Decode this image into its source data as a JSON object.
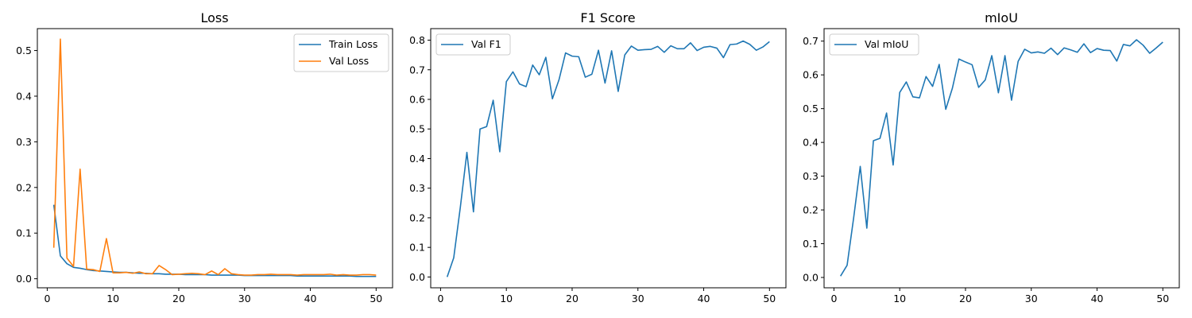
{
  "colors": {
    "blue": "#1f77b4",
    "orange": "#ff7f0e"
  },
  "chart_data": [
    {
      "type": "line",
      "title": "Loss",
      "xlabel": "",
      "ylabel": "",
      "x": [
        1,
        2,
        3,
        4,
        5,
        6,
        7,
        8,
        9,
        10,
        11,
        12,
        13,
        14,
        15,
        16,
        17,
        18,
        19,
        20,
        21,
        22,
        23,
        24,
        25,
        26,
        27,
        28,
        29,
        30,
        31,
        32,
        33,
        34,
        35,
        36,
        37,
        38,
        39,
        40,
        41,
        42,
        43,
        44,
        45,
        46,
        47,
        48,
        49,
        50
      ],
      "xlim": [
        -1.5,
        52.5
      ],
      "ylim": [
        -0.0198,
        0.548
      ],
      "xticks": [
        0,
        10,
        20,
        30,
        40,
        50
      ],
      "yticks": [
        0.0,
        0.1,
        0.2,
        0.3,
        0.4,
        0.5
      ],
      "xtick_labels": [
        "0",
        "10",
        "20",
        "30",
        "40",
        "50"
      ],
      "ytick_labels": [
        "0.0",
        "0.1",
        "0.2",
        "0.3",
        "0.4",
        "0.5"
      ],
      "legend_position": "top-right",
      "series": [
        {
          "name": "Train Loss",
          "color": "#1f77b4",
          "values": [
            0.162,
            0.05,
            0.033,
            0.025,
            0.023,
            0.02,
            0.018,
            0.017,
            0.016,
            0.015,
            0.014,
            0.014,
            0.013,
            0.012,
            0.012,
            0.011,
            0.011,
            0.01,
            0.01,
            0.01,
            0.009,
            0.009,
            0.009,
            0.009,
            0.008,
            0.008,
            0.008,
            0.008,
            0.008,
            0.007,
            0.007,
            0.007,
            0.007,
            0.007,
            0.007,
            0.007,
            0.007,
            0.006,
            0.006,
            0.006,
            0.006,
            0.006,
            0.006,
            0.006,
            0.006,
            0.006,
            0.005,
            0.005,
            0.005,
            0.005
          ]
        },
        {
          "name": "Val Loss",
          "color": "#ff7f0e",
          "values": [
            0.068,
            0.525,
            0.045,
            0.027,
            0.24,
            0.021,
            0.02,
            0.016,
            0.088,
            0.013,
            0.013,
            0.014,
            0.012,
            0.015,
            0.011,
            0.011,
            0.029,
            0.02,
            0.009,
            0.01,
            0.011,
            0.012,
            0.011,
            0.009,
            0.017,
            0.009,
            0.022,
            0.011,
            0.009,
            0.008,
            0.008,
            0.009,
            0.009,
            0.01,
            0.009,
            0.009,
            0.009,
            0.008,
            0.009,
            0.009,
            0.009,
            0.009,
            0.01,
            0.008,
            0.009,
            0.008,
            0.008,
            0.009,
            0.009,
            0.008
          ]
        }
      ]
    },
    {
      "type": "line",
      "title": "F1 Score",
      "xlabel": "",
      "ylabel": "",
      "x": [
        1,
        2,
        3,
        4,
        5,
        6,
        7,
        8,
        9,
        10,
        11,
        12,
        13,
        14,
        15,
        16,
        17,
        18,
        19,
        20,
        21,
        22,
        23,
        24,
        25,
        26,
        27,
        28,
        29,
        30,
        31,
        32,
        33,
        34,
        35,
        36,
        37,
        38,
        39,
        40,
        41,
        42,
        43,
        44,
        45,
        46,
        47,
        48,
        49,
        50
      ],
      "xlim": [
        -1.5,
        52.5
      ],
      "ylim": [
        -0.0365,
        0.839
      ],
      "xticks": [
        0,
        10,
        20,
        30,
        40,
        50
      ],
      "yticks": [
        0.0,
        0.1,
        0.2,
        0.3,
        0.4,
        0.5,
        0.6,
        0.7,
        0.8
      ],
      "xtick_labels": [
        "0",
        "10",
        "20",
        "30",
        "40",
        "50"
      ],
      "ytick_labels": [
        "0.0",
        "0.1",
        "0.2",
        "0.3",
        "0.4",
        "0.5",
        "0.6",
        "0.7",
        "0.8"
      ],
      "legend_position": "top-left",
      "series": [
        {
          "name": "Val F1",
          "color": "#1f77b4",
          "values": [
            0.0,
            0.065,
            0.235,
            0.421,
            0.22,
            0.5,
            0.508,
            0.597,
            0.423,
            0.66,
            0.693,
            0.652,
            0.643,
            0.716,
            0.683,
            0.742,
            0.602,
            0.666,
            0.757,
            0.746,
            0.744,
            0.675,
            0.685,
            0.766,
            0.655,
            0.764,
            0.627,
            0.75,
            0.78,
            0.766,
            0.768,
            0.769,
            0.779,
            0.759,
            0.781,
            0.771,
            0.771,
            0.791,
            0.765,
            0.776,
            0.779,
            0.773,
            0.741,
            0.785,
            0.787,
            0.797,
            0.786,
            0.766,
            0.777,
            0.795
          ]
        }
      ]
    },
    {
      "type": "line",
      "title": "mIoU",
      "xlabel": "",
      "ylabel": "",
      "x": [
        1,
        2,
        3,
        4,
        5,
        6,
        7,
        8,
        9,
        10,
        11,
        12,
        13,
        14,
        15,
        16,
        17,
        18,
        19,
        20,
        21,
        22,
        23,
        24,
        25,
        26,
        27,
        28,
        29,
        30,
        31,
        32,
        33,
        34,
        35,
        36,
        37,
        38,
        39,
        40,
        41,
        42,
        43,
        44,
        45,
        46,
        47,
        48,
        49,
        50
      ],
      "xlim": [
        -1.5,
        52.5
      ],
      "ylim": [
        -0.0306,
        0.737
      ],
      "xticks": [
        0,
        10,
        20,
        30,
        40,
        50
      ],
      "yticks": [
        0.0,
        0.1,
        0.2,
        0.3,
        0.4,
        0.5,
        0.6,
        0.7
      ],
      "xtick_labels": [
        "0",
        "10",
        "20",
        "30",
        "40",
        "50"
      ],
      "ytick_labels": [
        "0.0",
        "0.1",
        "0.2",
        "0.3",
        "0.4",
        "0.5",
        "0.6",
        "0.7"
      ],
      "legend_position": "top-left",
      "series": [
        {
          "name": "Val mIoU",
          "color": "#1f77b4",
          "values": [
            0.004,
            0.036,
            0.177,
            0.329,
            0.146,
            0.405,
            0.412,
            0.487,
            0.333,
            0.548,
            0.579,
            0.535,
            0.532,
            0.595,
            0.566,
            0.631,
            0.498,
            0.56,
            0.647,
            0.638,
            0.63,
            0.563,
            0.585,
            0.657,
            0.547,
            0.657,
            0.525,
            0.64,
            0.676,
            0.665,
            0.668,
            0.664,
            0.679,
            0.66,
            0.68,
            0.674,
            0.667,
            0.692,
            0.666,
            0.678,
            0.673,
            0.672,
            0.641,
            0.69,
            0.686,
            0.704,
            0.688,
            0.664,
            0.68,
            0.697
          ]
        }
      ]
    }
  ]
}
